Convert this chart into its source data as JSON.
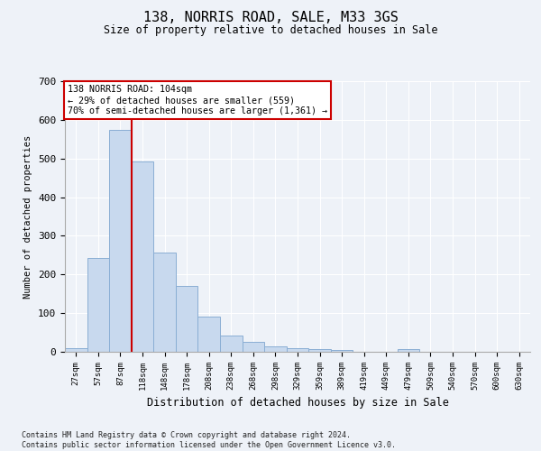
{
  "title": "138, NORRIS ROAD, SALE, M33 3GS",
  "subtitle": "Size of property relative to detached houses in Sale",
  "xlabel": "Distribution of detached houses by size in Sale",
  "ylabel": "Number of detached properties",
  "bar_color": "#c8d9ee",
  "bar_edge_color": "#8aaed4",
  "background_color": "#eef2f8",
  "grid_color": "#ffffff",
  "categories": [
    "27sqm",
    "57sqm",
    "87sqm",
    "118sqm",
    "148sqm",
    "178sqm",
    "208sqm",
    "238sqm",
    "268sqm",
    "298sqm",
    "329sqm",
    "359sqm",
    "389sqm",
    "419sqm",
    "449sqm",
    "479sqm",
    "509sqm",
    "540sqm",
    "570sqm",
    "600sqm",
    "630sqm"
  ],
  "values": [
    10,
    242,
    575,
    493,
    257,
    170,
    92,
    43,
    25,
    14,
    10,
    6,
    5,
    0,
    0,
    6,
    0,
    0,
    0,
    0,
    0
  ],
  "ylim": [
    0,
    700
  ],
  "yticks": [
    0,
    100,
    200,
    300,
    400,
    500,
    600,
    700
  ],
  "property_line_x": 2.5,
  "annotation_text": "138 NORRIS ROAD: 104sqm\n← 29% of detached houses are smaller (559)\n70% of semi-detached houses are larger (1,361) →",
  "annotation_box_color": "#ffffff",
  "annotation_box_edge": "#cc0000",
  "vline_color": "#cc0000",
  "footnote1": "Contains HM Land Registry data © Crown copyright and database right 2024.",
  "footnote2": "Contains public sector information licensed under the Open Government Licence v3.0."
}
